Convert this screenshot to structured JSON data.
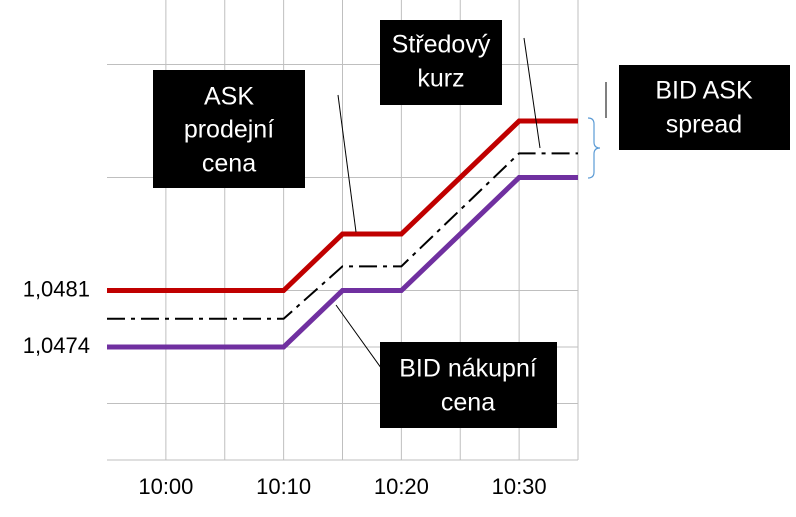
{
  "chart_data": {
    "type": "line",
    "x": [
      "09:55",
      "10:10",
      "10:15",
      "10:20",
      "10:30",
      "10:35"
    ],
    "xlim": [
      "09:55",
      "10:35"
    ],
    "xticks": [
      "10:00",
      "10:10",
      "10:20",
      "10:30"
    ],
    "ylim": [
      1.046,
      1.0517
    ],
    "yticks": [
      {
        "value": 1.0481,
        "label": "1,0481"
      },
      {
        "value": 1.0474,
        "label": "1,0474"
      }
    ],
    "ygrid": [
      1.0509,
      1.0495,
      1.0481,
      1.0474,
      1.0467
    ],
    "grid": true,
    "series": [
      {
        "color": "#c00000",
        "style": "solid",
        "values": [
          1.0481,
          1.0481,
          1.0488,
          1.0488,
          1.0502,
          1.0502
        ]
      },
      {
        "color": "#000000",
        "style": "dashdot",
        "values": [
          1.04775,
          1.04775,
          1.0484,
          1.0484,
          1.0498,
          1.0498
        ]
      },
      {
        "color": "#7030a0",
        "style": "solid",
        "values": [
          1.0474,
          1.0474,
          1.0481,
          1.0481,
          1.0495,
          1.0495
        ]
      }
    ],
    "annotations": [
      {
        "lines": [
          "ASK",
          "prodejní",
          "cena"
        ]
      },
      {
        "lines": [
          "Středový",
          "kurz"
        ]
      },
      {
        "lines": [
          "BID ASK",
          "spread"
        ]
      },
      {
        "lines": [
          "BID nákupní",
          "cena"
        ]
      }
    ]
  }
}
